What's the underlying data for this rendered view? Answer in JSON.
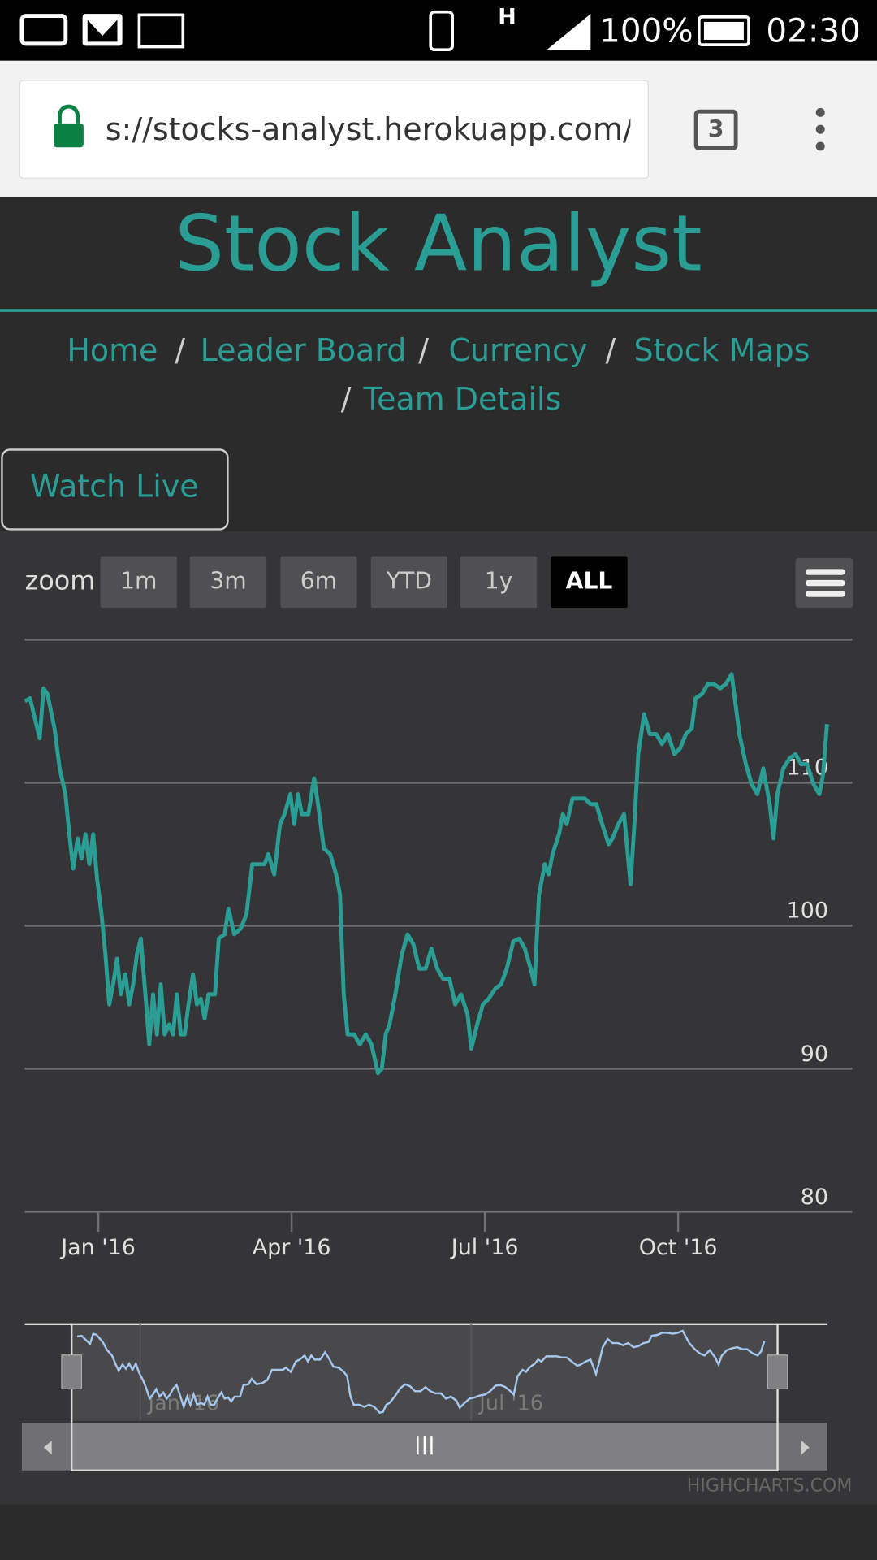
{
  "status": {
    "network": "H",
    "battery": "100%",
    "time": "02:30"
  },
  "browser": {
    "url": "s://stocks-analyst.herokuapp.com/#",
    "tabs": "3"
  },
  "header": {
    "title": "Stock Analyst"
  },
  "nav": {
    "items": [
      "Home",
      "Leader Board",
      "Currency",
      "Stock Maps",
      "Team Details"
    ],
    "separator": "/"
  },
  "button": "Watch Live",
  "chart_data": {
    "type": "line",
    "zoom_label": "zoom",
    "range_buttons": [
      "1m",
      "3m",
      "6m",
      "YTD",
      "1y",
      "ALL"
    ],
    "selected_range": 5,
    "credits": "Highcharts.com",
    "color": "#2a9d94",
    "navigator_color": "#a6c7ed",
    "grid": true,
    "ylim": [
      80,
      120
    ],
    "yticks": [
      80,
      90,
      100,
      110
    ],
    "xlim": [
      -1.14,
      11.7
    ],
    "xticks": [
      {
        "value": 0,
        "label": "Jan '16"
      },
      {
        "value": 3,
        "label": "Apr '16"
      },
      {
        "value": 6,
        "label": "Jul '16"
      },
      {
        "value": 9,
        "label": "Oct '16"
      }
    ],
    "navigator_xlim": [
      -2.09,
      12.45
    ],
    "navigator_ylim": [
      88,
      118.5
    ],
    "navigator_xticks": [
      {
        "value": 0,
        "label": "Jan '16"
      },
      {
        "value": 6,
        "label": "Jul '16"
      }
    ],
    "x": [
      -1.14,
      -1.06,
      -0.91,
      -0.85,
      -0.79,
      -0.68,
      -0.6,
      -0.51,
      -0.45,
      -0.39,
      -0.32,
      -0.26,
      -0.2,
      -0.14,
      -0.08,
      -0.02,
      0.05,
      0.11,
      0.17,
      0.23,
      0.29,
      0.35,
      0.42,
      0.48,
      0.54,
      0.6,
      0.66,
      0.73,
      0.79,
      0.85,
      0.91,
      0.97,
      1.03,
      1.1,
      1.16,
      1.22,
      1.28,
      1.34,
      1.4,
      1.47,
      1.53,
      1.59,
      1.65,
      1.71,
      1.81,
      1.87,
      1.96,
      2.02,
      2.11,
      2.21,
      2.3,
      2.39,
      2.48,
      2.58,
      2.64,
      2.73,
      2.82,
      2.89,
      2.98,
      3.04,
      3.1,
      3.16,
      3.26,
      3.35,
      3.41,
      3.5,
      3.6,
      3.69,
      3.75,
      3.81,
      3.87,
      3.97,
      4.06,
      4.15,
      4.24,
      4.34,
      4.4,
      4.46,
      4.52,
      4.61,
      4.71,
      4.8,
      4.89,
      4.98,
      5.08,
      5.17,
      5.26,
      5.35,
      5.45,
      5.54,
      5.63,
      5.73,
      5.79,
      5.88,
      5.97,
      6.06,
      6.16,
      6.25,
      6.34,
      6.44,
      6.53,
      6.62,
      6.71,
      6.77,
      6.84,
      6.93,
      6.99,
      7.05,
      7.15,
      7.21,
      7.27,
      7.36,
      7.45,
      7.55,
      7.64,
      7.73,
      7.82,
      7.92,
      7.98,
      8.07,
      8.16,
      8.26,
      8.32,
      8.38,
      8.47,
      8.56,
      8.66,
      8.75,
      8.84,
      8.94,
      9.03,
      9.12,
      9.21,
      9.27,
      9.37,
      9.46,
      9.55,
      9.65,
      9.74,
      9.83,
      9.89,
      9.95,
      10.05,
      10.14,
      10.23,
      10.32,
      10.42,
      10.48,
      10.54,
      10.63,
      10.73,
      10.82,
      10.91,
      11.0,
      11.1,
      11.19,
      11.25,
      11.31
    ],
    "values": [
      115.7,
      115.9,
      113.1,
      116.6,
      116.2,
      113.8,
      111.0,
      109.2,
      106.4,
      104.0,
      106.1,
      104.7,
      106.4,
      104.3,
      106.4,
      103.3,
      100.8,
      98.0,
      94.5,
      95.9,
      97.7,
      95.2,
      96.6,
      94.5,
      95.9,
      98.0,
      99.1,
      95.2,
      91.7,
      95.2,
      92.4,
      95.9,
      92.4,
      93.1,
      92.4,
      95.2,
      92.4,
      92.4,
      94.5,
      96.6,
      94.5,
      94.9,
      93.5,
      95.2,
      95.2,
      99.1,
      99.4,
      101.2,
      99.4,
      99.8,
      100.8,
      104.3,
      104.3,
      104.3,
      105.0,
      103.6,
      107.1,
      107.8,
      109.2,
      107.1,
      109.2,
      107.8,
      107.8,
      110.3,
      108.5,
      105.4,
      105.0,
      103.6,
      102.2,
      95.2,
      92.4,
      92.4,
      91.7,
      92.4,
      91.7,
      89.7,
      90.0,
      92.4,
      93.1,
      95.2,
      98.0,
      99.4,
      98.7,
      97.0,
      97.0,
      98.4,
      97.0,
      96.3,
      96.3,
      94.5,
      95.2,
      93.8,
      91.4,
      93.1,
      94.5,
      94.9,
      95.6,
      95.9,
      97.0,
      98.9,
      99.1,
      98.4,
      97.0,
      95.9,
      102.2,
      104.3,
      103.6,
      105.0,
      106.4,
      107.8,
      107.1,
      108.9,
      108.9,
      108.9,
      108.5,
      108.5,
      107.1,
      105.7,
      106.1,
      107.1,
      107.8,
      102.9,
      107.1,
      112.0,
      114.8,
      113.4,
      113.4,
      112.7,
      113.4,
      112.0,
      112.4,
      113.4,
      113.8,
      115.9,
      116.2,
      116.9,
      116.9,
      116.6,
      116.9,
      117.6,
      115.5,
      113.4,
      111.3,
      109.9,
      109.2,
      111.0,
      108.5,
      106.1,
      109.2,
      111.0,
      111.7,
      112.0,
      111.3,
      111.3,
      109.9,
      109.2,
      110.6,
      114.1
    ]
  }
}
